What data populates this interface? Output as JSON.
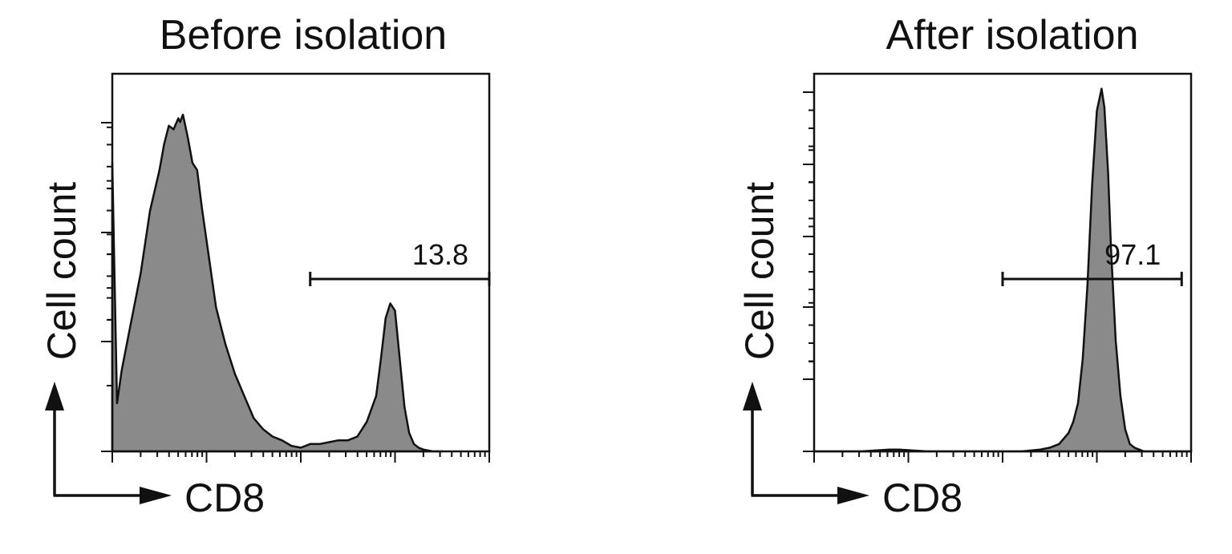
{
  "chart_data": [
    {
      "type": "histogram",
      "title": "Before isolation",
      "xlabel": "CD8",
      "ylabel": "Cell count",
      "x_scale": "log (biexponential)",
      "gate": {
        "label": "13.8",
        "x_start_decade": 2.1,
        "x_end_decade": 4.0
      },
      "x": [
        0.0,
        0.05,
        0.1,
        0.2,
        0.3,
        0.4,
        0.5,
        0.55,
        0.6,
        0.65,
        0.7,
        0.72,
        0.75,
        0.8,
        0.85,
        0.9,
        0.95,
        1.0,
        1.05,
        1.1,
        1.15,
        1.2,
        1.3,
        1.4,
        1.5,
        1.6,
        1.7,
        1.8,
        1.9,
        2.0,
        2.1,
        2.2,
        2.3,
        2.4,
        2.5,
        2.6,
        2.7,
        2.8,
        2.85,
        2.9,
        2.95,
        3.0,
        3.05,
        3.1,
        3.15,
        3.2,
        3.25,
        3.3,
        3.4,
        3.5
      ],
      "y": [
        0.78,
        0.13,
        0.22,
        0.35,
        0.48,
        0.65,
        0.76,
        0.83,
        0.88,
        0.87,
        0.9,
        0.89,
        0.91,
        0.85,
        0.78,
        0.76,
        0.66,
        0.57,
        0.48,
        0.39,
        0.34,
        0.29,
        0.21,
        0.15,
        0.09,
        0.06,
        0.04,
        0.03,
        0.015,
        0.01,
        0.02,
        0.02,
        0.025,
        0.03,
        0.03,
        0.04,
        0.08,
        0.15,
        0.25,
        0.36,
        0.4,
        0.38,
        0.25,
        0.12,
        0.05,
        0.02,
        0.01,
        0.005,
        0.0,
        0.0
      ],
      "ylim": [
        0,
        1
      ]
    },
    {
      "type": "histogram",
      "title": "After isolation",
      "xlabel": "CD8",
      "ylabel": "Cell count",
      "x_scale": "log (biexponential)",
      "gate": {
        "label": "97.1",
        "x_start_decade": 2.0,
        "x_end_decade": 3.9
      },
      "x": [
        0.0,
        0.5,
        0.8,
        0.9,
        1.2,
        1.5,
        1.8,
        2.2,
        2.4,
        2.5,
        2.6,
        2.7,
        2.75,
        2.8,
        2.85,
        2.9,
        2.95,
        3.0,
        3.05,
        3.08,
        3.12,
        3.15,
        3.2,
        3.25,
        3.3,
        3.35,
        3.4,
        3.5,
        3.6,
        4.0
      ],
      "y": [
        0.0,
        0.0,
        0.005,
        0.005,
        0.0,
        0.0,
        0.0,
        0.0,
        0.005,
        0.01,
        0.02,
        0.05,
        0.08,
        0.13,
        0.25,
        0.45,
        0.72,
        0.92,
        0.98,
        0.93,
        0.75,
        0.55,
        0.3,
        0.15,
        0.06,
        0.02,
        0.01,
        0.0,
        0.0,
        0.0
      ],
      "ylim": [
        0,
        1
      ]
    }
  ]
}
